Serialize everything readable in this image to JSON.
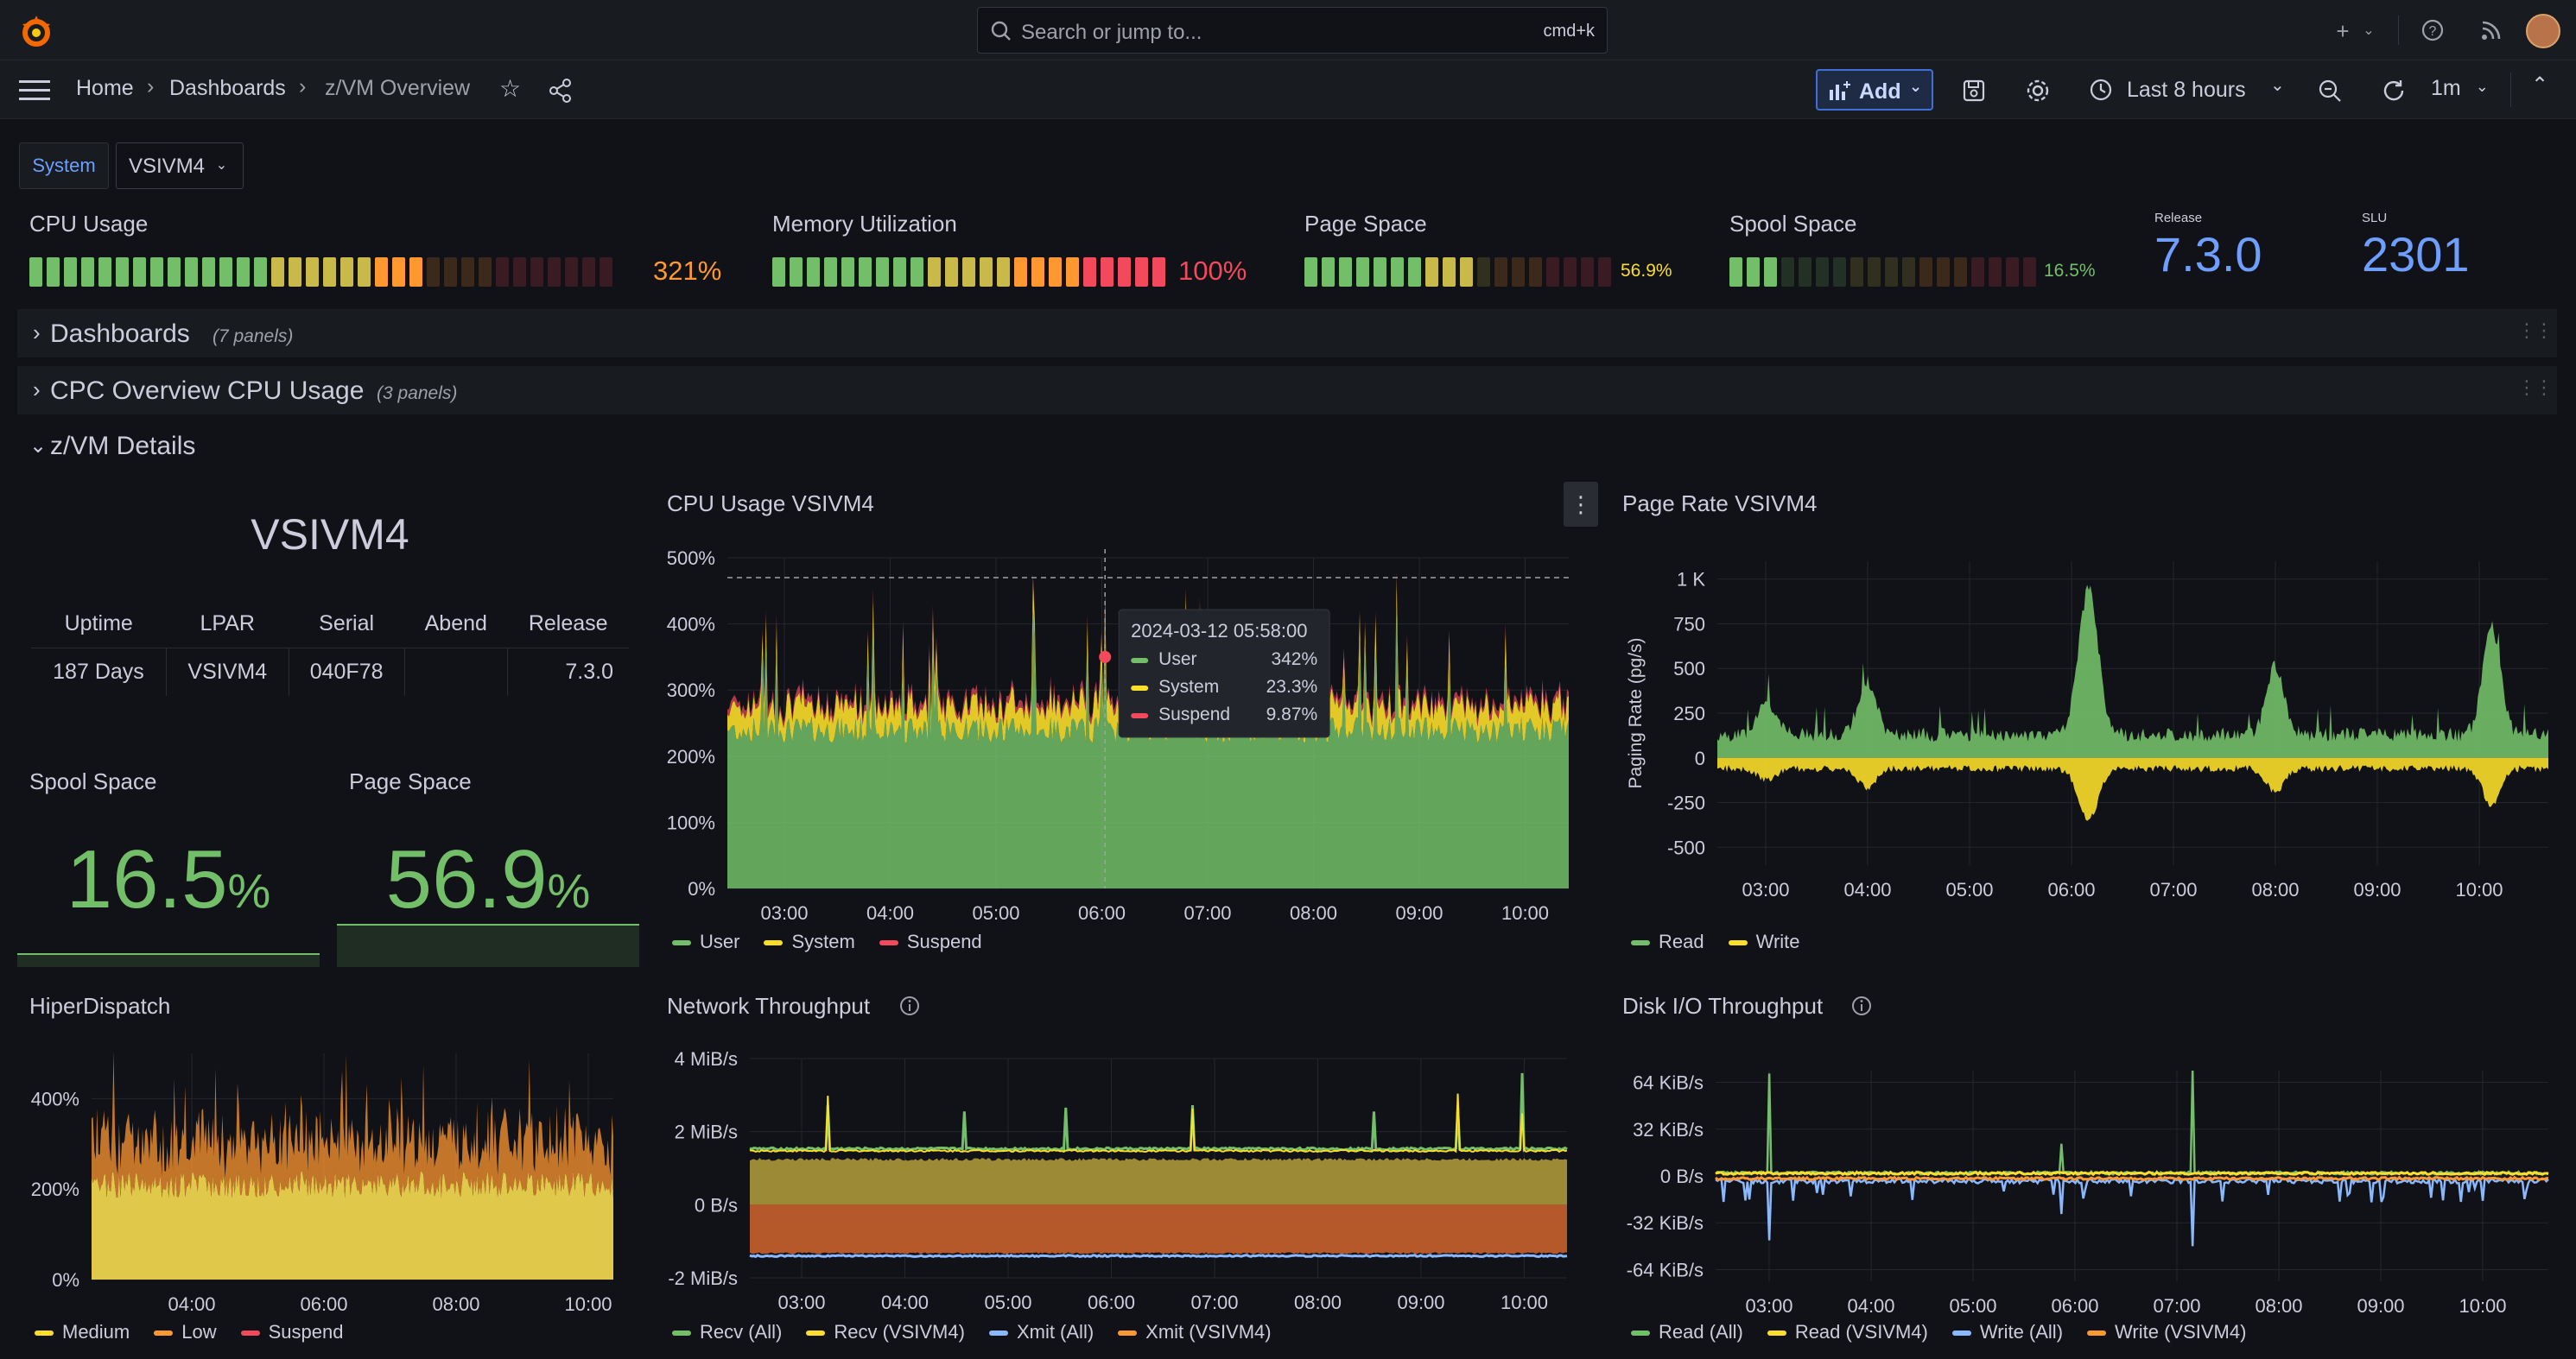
{
  "topbar": {
    "search_placeholder": "Search or jump to...",
    "search_shortcut": "cmd+k"
  },
  "nav": {
    "breadcrumbs": [
      "Home",
      "Dashboards",
      "z/VM Overview"
    ],
    "add_label": "Add",
    "time_range": "Last 8 hours",
    "refresh_interval": "1m"
  },
  "variables": {
    "label": "System",
    "value": "VSIVM4"
  },
  "stats": {
    "cpu": {
      "title": "CPU Usage",
      "value": "321%",
      "fraction": 0.68
    },
    "memory": {
      "title": "Memory Utilization",
      "value": "100%",
      "fraction": 1.0
    },
    "page": {
      "title": "Page Space",
      "value": "56.9%",
      "fraction": 0.569
    },
    "spool": {
      "title": "Spool Space",
      "value": "16.5%",
      "fraction": 0.165
    },
    "release": {
      "title": "Release",
      "value": "7.3.0"
    },
    "slu": {
      "title": "SLU",
      "value": "2301"
    }
  },
  "rows": [
    {
      "title": "Dashboards",
      "count": "(7 panels)"
    },
    {
      "title": "CPC Overview CPU Usage",
      "count": "(3 panels)"
    },
    {
      "title": "z/VM Details"
    }
  ],
  "details": {
    "system_name": "VSIVM4",
    "table": {
      "headers": [
        "Uptime",
        "LPAR",
        "Serial",
        "Abend",
        "Release"
      ],
      "row": [
        "187 Days",
        "VSIVM4",
        "040F78",
        "",
        "7.3.0"
      ]
    },
    "spool": {
      "title": "Spool Space",
      "value": "16.5",
      "unit": "%"
    },
    "page": {
      "title": "Page Space",
      "value": "56.9",
      "unit": "%"
    }
  },
  "colors": {
    "green": "#73bf69",
    "yellow": "#fade2a",
    "red": "#f2495c",
    "orange": "#ff9830",
    "blue": "#8ab8ff",
    "accent": "#6e9fff"
  },
  "chart_data": [
    {
      "id": "cpu",
      "type": "area",
      "title": "CPU Usage VSIVM4",
      "x_ticks": [
        "03:00",
        "04:00",
        "05:00",
        "06:00",
        "07:00",
        "08:00",
        "09:00",
        "10:00"
      ],
      "y_ticks": [
        "0%",
        "100%",
        "200%",
        "300%",
        "400%",
        "500%"
      ],
      "ylim": [
        0,
        500
      ],
      "series": [
        {
          "name": "User",
          "typical": 240,
          "peak": 342
        },
        {
          "name": "System",
          "typical": 20,
          "peak": 23.3
        },
        {
          "name": "Suspend",
          "typical": 5,
          "peak": 9.87
        }
      ],
      "tooltip": {
        "time": "2024-03-12 05:58:00",
        "rows": [
          {
            "name": "User",
            "value": "342%"
          },
          {
            "name": "System",
            "value": "23.3%"
          },
          {
            "name": "Suspend",
            "value": "9.87%"
          }
        ]
      }
    },
    {
      "id": "page",
      "type": "area",
      "title": "Page Rate VSIVM4",
      "ylabel": "Paging Rate (pg/s)",
      "x_ticks": [
        "03:00",
        "04:00",
        "05:00",
        "06:00",
        "07:00",
        "08:00",
        "09:00",
        "10:00"
      ],
      "y_ticks": [
        "-500",
        "-250",
        "0",
        "250",
        "500",
        "750",
        "1 K"
      ],
      "ylim": [
        -600,
        1100
      ],
      "series": [
        {
          "name": "Read"
        },
        {
          "name": "Write"
        }
      ]
    },
    {
      "id": "hiper",
      "type": "area",
      "title": "HiperDispatch",
      "x_ticks": [
        "04:00",
        "06:00",
        "08:00",
        "10:00"
      ],
      "y_ticks": [
        "0%",
        "200%",
        "400%"
      ],
      "ylim": [
        0,
        500
      ],
      "series": [
        {
          "name": "Medium"
        },
        {
          "name": "Low"
        },
        {
          "name": "Suspend"
        }
      ]
    },
    {
      "id": "net",
      "type": "area",
      "title": "Network Throughput",
      "x_ticks": [
        "03:00",
        "04:00",
        "05:00",
        "06:00",
        "07:00",
        "08:00",
        "09:00",
        "10:00"
      ],
      "y_ticks": [
        "-2 MiB/s",
        "0 B/s",
        "2 MiB/s",
        "4 MiB/s"
      ],
      "ylim": [
        -2,
        4
      ],
      "series": [
        {
          "name": "Recv (All)"
        },
        {
          "name": "Recv (VSIVM4)"
        },
        {
          "name": "Xmit (All)"
        },
        {
          "name": "Xmit (VSIVM4)"
        }
      ]
    },
    {
      "id": "disk",
      "type": "line",
      "title": "Disk I/O Throughput",
      "x_ticks": [
        "03:00",
        "04:00",
        "05:00",
        "06:00",
        "07:00",
        "08:00",
        "09:00",
        "10:00"
      ],
      "y_ticks": [
        "-64 KiB/s",
        "-32 KiB/s",
        "0 B/s",
        "32 KiB/s",
        "64 KiB/s"
      ],
      "ylim": [
        -72,
        72
      ],
      "series": [
        {
          "name": "Read (All)"
        },
        {
          "name": "Read (VSIVM4)"
        },
        {
          "name": "Write (All)"
        },
        {
          "name": "Write (VSIVM4)"
        }
      ]
    }
  ]
}
